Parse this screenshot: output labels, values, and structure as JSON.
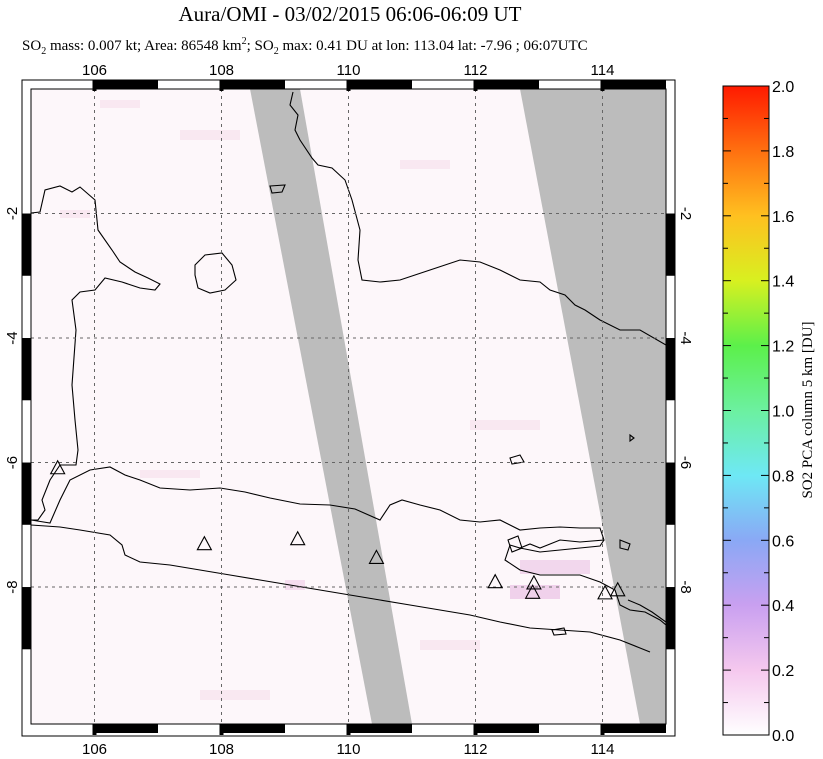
{
  "header": {
    "title": "Aura/OMI - 03/02/2015 06:06-06:09 UT",
    "so2_prefix": "SO",
    "so2_sub": "2",
    "mass_text": " mass: 0.007 kt; Area: 86548 km",
    "area_sup": "2",
    "max_text": "; SO",
    "max_sub": "2",
    "max_rest": " max: 0.41 DU at lon: 113.04 lat: -7.96 ; 06:07UTC"
  },
  "chart_data": {
    "type": "heatmap",
    "lon_ticks": [
      "106",
      "108",
      "110",
      "112",
      "114"
    ],
    "lat_ticks": [
      "-2",
      "-4",
      "-6",
      "-8"
    ],
    "lon_range": [
      105,
      115
    ],
    "lat_range": [
      -10.2,
      0
    ],
    "colorbar": {
      "label": "SO2 PCA column 5 km [DU]",
      "ticks": [
        "2.0",
        "1.8",
        "1.6",
        "1.4",
        "1.2",
        "1.0",
        "0.8",
        "0.6",
        "0.4",
        "0.2",
        "0.0"
      ],
      "range": [
        0,
        2
      ],
      "colors": [
        "#ffffff",
        "#f5c8ee",
        "#c9a0f0",
        "#8aa8f5",
        "#6ee8f5",
        "#6cf0a0",
        "#5cf04a",
        "#d8f020",
        "#ffc020",
        "#ff7010",
        "#ff1a00"
      ]
    },
    "grid": true,
    "volcanoes": [
      {
        "lon": 105.42,
        "lat": -6.1
      },
      {
        "lon": 107.73,
        "lat": -7.32
      },
      {
        "lon": 109.2,
        "lat": -7.24
      },
      {
        "lon": 110.44,
        "lat": -7.54
      },
      {
        "lon": 112.31,
        "lat": -7.93
      },
      {
        "lon": 112.92,
        "lat": -7.95
      },
      {
        "lon": 112.9,
        "lat": -8.1
      },
      {
        "lon": 114.04,
        "lat": -8.11
      },
      {
        "lon": 114.24,
        "lat": -8.06
      }
    ]
  }
}
